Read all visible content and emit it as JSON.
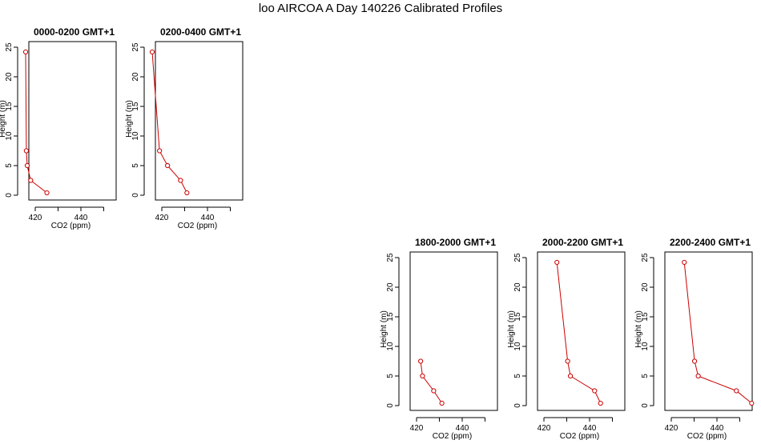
{
  "title": "loo AIRCOA A  Day 140226  Calibrated Profiles",
  "colors": {
    "series": "#cc0000",
    "axis": "#000000"
  },
  "chart_data": [
    {
      "type": "line",
      "title": "0000-0200 GMT+1",
      "xlabel": "CO2 (ppm)",
      "ylabel": "Height (m)",
      "xlim": [
        415,
        456
      ],
      "ylim": [
        -0.6,
        25.2
      ],
      "xticks": [
        420,
        440
      ],
      "yticks": [
        0,
        5,
        10,
        15,
        20,
        25
      ],
      "x": [
        415.8,
        416.1,
        416.5,
        418.0,
        425.1
      ],
      "y": [
        24.2,
        7.5,
        5.0,
        2.5,
        0.4
      ]
    },
    {
      "type": "line",
      "title": "0200-0400 GMT+1",
      "xlabel": "CO2 (ppm)",
      "ylabel": "Height (m)",
      "xlim": [
        415,
        456
      ],
      "ylim": [
        -0.6,
        25.2
      ],
      "xticks": [
        420,
        440
      ],
      "yticks": [
        0,
        5,
        10,
        15,
        20,
        25
      ],
      "x": [
        415.8,
        419.0,
        422.5,
        428.2,
        431.0
      ],
      "y": [
        24.2,
        7.5,
        5.0,
        2.5,
        0.4
      ]
    },
    {
      "type": "line",
      "title": "1800-2000 GMT+1",
      "xlabel": "CO2 (ppm)",
      "ylabel": "Height (m)",
      "xlim": [
        415,
        456
      ],
      "ylim": [
        -0.6,
        25.2
      ],
      "xticks": [
        420,
        440
      ],
      "yticks": [
        0,
        5,
        10,
        15,
        20,
        25
      ],
      "x": [
        421.8,
        422.6,
        427.5,
        431.1
      ],
      "y": [
        7.5,
        5.0,
        2.5,
        0.4
      ]
    },
    {
      "type": "line",
      "title": "2000-2200 GMT+1",
      "xlabel": "CO2 (ppm)",
      "ylabel": "Height (m)",
      "xlim": [
        415,
        456
      ],
      "ylim": [
        -0.6,
        25.2
      ],
      "xticks": [
        420,
        440
      ],
      "yticks": [
        0,
        5,
        10,
        15,
        20,
        25
      ],
      "x": [
        425.7,
        430.4,
        431.6,
        442.2,
        444.8
      ],
      "y": [
        24.2,
        7.5,
        5.0,
        2.5,
        0.4
      ]
    },
    {
      "type": "line",
      "title": "2200-2400 GMT+1",
      "xlabel": "CO2 (ppm)",
      "ylabel": "Height (m)",
      "xlim": [
        415,
        456
      ],
      "ylim": [
        -0.6,
        25.2
      ],
      "xticks": [
        420,
        440
      ],
      "yticks": [
        0,
        5,
        10,
        15,
        20,
        25
      ],
      "x": [
        425.7,
        430.2,
        431.8,
        448.5,
        455.2
      ],
      "y": [
        24.2,
        7.5,
        5.0,
        2.5,
        0.4
      ]
    }
  ]
}
